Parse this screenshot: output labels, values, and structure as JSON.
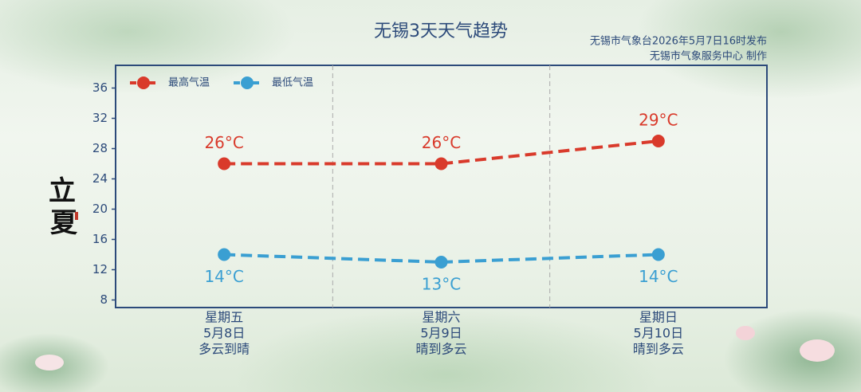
{
  "chart_data": {
    "type": "line",
    "title": "无锡3天天气趋势",
    "subtitle": [
      "无锡市气象台2026年5月7日16时发布",
      "无锡市气象服务中心 制作"
    ],
    "seasonal_term": [
      "立",
      "夏"
    ],
    "categories": [
      "星期五",
      "星期六",
      "星期日"
    ],
    "dates": [
      "5月8日",
      "5月9日",
      "5月10日"
    ],
    "weather": [
      "多云到晴",
      "晴到多云",
      "晴到多云"
    ],
    "series": [
      {
        "name": "最高气温",
        "color": "#d93a2b",
        "values": [
          26,
          26,
          29
        ],
        "value_labels": [
          "26°C",
          "26°C",
          "29°C"
        ],
        "label_position": "above"
      },
      {
        "name": "最低气温",
        "color": "#3a9fd2",
        "values": [
          14,
          13,
          14
        ],
        "value_labels": [
          "14°C",
          "13°C",
          "14°C"
        ],
        "label_position": "below"
      }
    ],
    "ylim": [
      7,
      39
    ],
    "yticks": [
      8,
      12,
      16,
      20,
      24,
      28,
      32,
      36
    ],
    "legend": "upper left",
    "category_separators": true
  }
}
